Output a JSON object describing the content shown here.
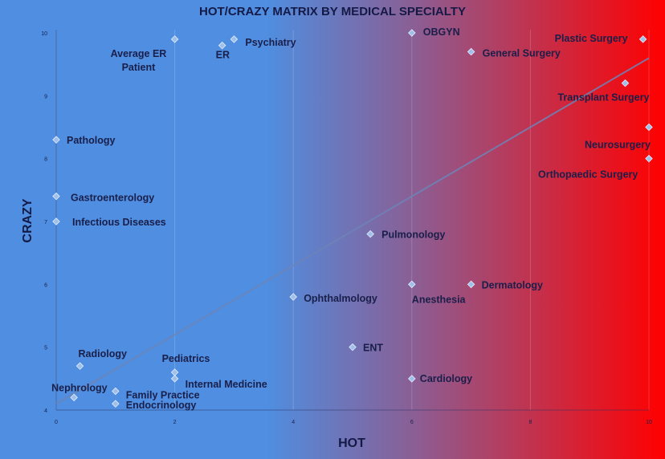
{
  "chart_data": {
    "type": "scatter",
    "title": "HOT/CRAZY MATRIX BY MEDICAL SPECIALTY",
    "xlabel": "HOT",
    "ylabel": "CRAZY",
    "xlim": [
      0,
      10
    ],
    "ylim": [
      4,
      10
    ],
    "x_ticks": [
      "0",
      "2",
      "4",
      "6",
      "8",
      "10"
    ],
    "y_ticks": [
      "4",
      "5",
      "6",
      "7",
      "8",
      "9",
      "10"
    ],
    "grid": "vertical",
    "background": "gradient blue (left) to red (right)",
    "colors": {
      "left": "#4f8ee0",
      "mid": "#8a5f95",
      "right": "#ff0000",
      "point": "#9fc0ea",
      "text": "#1a1f4a"
    },
    "points": [
      {
        "label": "Average ER Patient",
        "x": 2.0,
        "y": 9.9
      },
      {
        "label": "ER",
        "x": 2.8,
        "y": 9.8
      },
      {
        "label": "Psychiatry",
        "x": 3.0,
        "y": 9.9
      },
      {
        "label": "OBGYN",
        "x": 6.0,
        "y": 10.0
      },
      {
        "label": "Plastic Surgery",
        "x": 9.9,
        "y": 9.9
      },
      {
        "label": "General Surgery",
        "x": 7.0,
        "y": 9.7
      },
      {
        "label": "Transplant Surgery",
        "x": 9.6,
        "y": 9.2
      },
      {
        "label": "Neurosurgery",
        "x": 10.0,
        "y": 8.5
      },
      {
        "label": "Orthopaedic Surgery",
        "x": 10.0,
        "y": 8.0
      },
      {
        "label": "Pathology",
        "x": 0.0,
        "y": 8.3
      },
      {
        "label": "Gastroenterology",
        "x": 0.0,
        "y": 7.4
      },
      {
        "label": "Infectious Diseases",
        "x": 0.0,
        "y": 7.0
      },
      {
        "label": "Pulmonology",
        "x": 5.3,
        "y": 6.8
      },
      {
        "label": "Ophthalmology",
        "x": 4.0,
        "y": 5.8
      },
      {
        "label": "Anesthesia",
        "x": 6.0,
        "y": 6.0
      },
      {
        "label": "Dermatology",
        "x": 7.0,
        "y": 6.0
      },
      {
        "label": "ENT",
        "x": 5.0,
        "y": 5.0
      },
      {
        "label": "Cardiology",
        "x": 6.0,
        "y": 4.5
      },
      {
        "label": "Radiology",
        "x": 0.4,
        "y": 4.7
      },
      {
        "label": "Pediatrics",
        "x": 2.0,
        "y": 4.6
      },
      {
        "label": "Internal Medicine",
        "x": 2.0,
        "y": 4.5
      },
      {
        "label": "Nephrology",
        "x": 0.3,
        "y": 4.2
      },
      {
        "label": "Family Practice",
        "x": 1.0,
        "y": 4.3
      },
      {
        "label": "Endocrinology",
        "x": 1.0,
        "y": 4.1
      }
    ],
    "trendline": {
      "x": [
        0,
        10
      ],
      "y": [
        4.1,
        9.6
      ]
    }
  }
}
